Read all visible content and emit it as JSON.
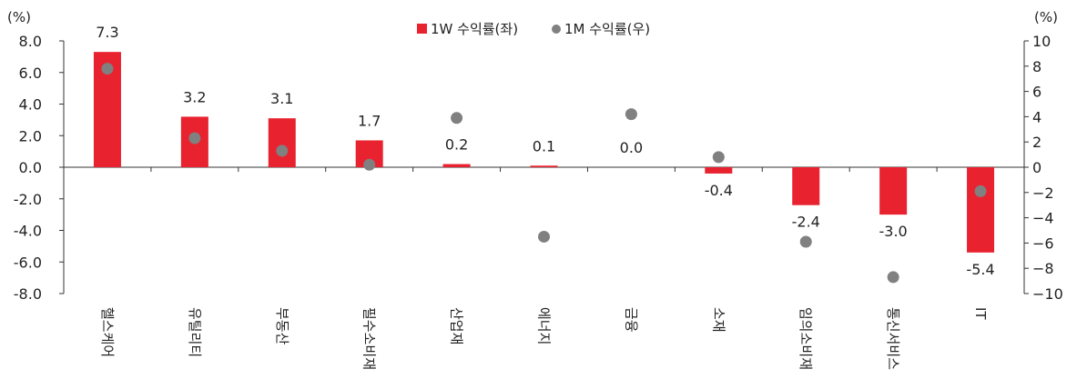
{
  "chart_data": {
    "type": "bar",
    "categories": [
      "헬스케어",
      "유틸리티",
      "부동산",
      "필수소비재",
      "산업재",
      "에너지",
      "금융",
      "소재",
      "임의소비재",
      "통신서비스",
      "IT"
    ],
    "series": [
      {
        "name": "1W 수익률(좌)",
        "type": "bar",
        "axis": "left",
        "color": "#e8232f",
        "values": [
          7.3,
          3.2,
          3.1,
          1.7,
          0.2,
          0.1,
          0.0,
          -0.4,
          -2.4,
          -3.0,
          -5.4
        ],
        "labels": [
          "7.3",
          "3.2",
          "3.1",
          "1.7",
          "0.2",
          "0.1",
          "0.0",
          "-0.4",
          "-2.4",
          "-3.0",
          "-5.4"
        ]
      },
      {
        "name": "1M 수익률(우)",
        "type": "scatter",
        "axis": "right",
        "color": "#808080",
        "values": [
          7.8,
          2.3,
          1.3,
          0.2,
          3.9,
          -5.5,
          4.2,
          0.8,
          -5.9,
          -8.7,
          -1.9
        ]
      }
    ],
    "left_axis": {
      "unit": "(%)",
      "ylim": [
        -8.0,
        8.0
      ],
      "ticks": [
        "-8.0",
        "-6.0",
        "-4.0",
        "-2.0",
        "0.0",
        "2.0",
        "4.0",
        "6.0",
        "8.0"
      ]
    },
    "right_axis": {
      "unit": "(%)",
      "ylim": [
        -10,
        10
      ],
      "ticks": [
        "−10",
        "−8",
        "−6",
        "−4",
        "−2",
        "0",
        "2",
        "4",
        "6",
        "8",
        "10"
      ]
    },
    "legend_position": "top-center",
    "grid": false
  }
}
